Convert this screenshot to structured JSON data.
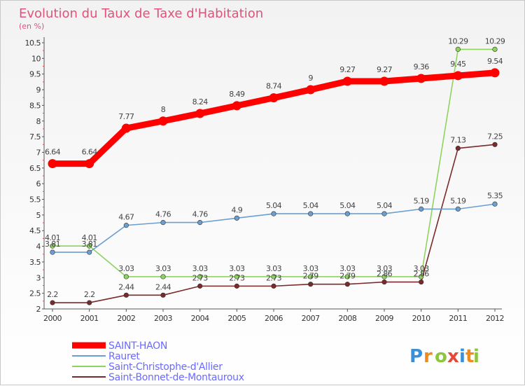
{
  "chart_data": {
    "type": "line",
    "title": "Evolution du Taux de Taxe d'Habitation",
    "subtitle": "(en %)",
    "xlabel": "",
    "ylabel": "",
    "x": [
      "2000",
      "2001",
      "2002",
      "2003",
      "2004",
      "2005",
      "2006",
      "2007",
      "2008",
      "2009",
      "2010",
      "2011",
      "2012"
    ],
    "ylim": [
      2,
      10.5
    ],
    "yticks": [
      "2",
      "2.5",
      "3",
      "3.5",
      "4",
      "4.5",
      "5",
      "5.5",
      "6",
      "6.5",
      "7",
      "7.5",
      "8",
      "8.5",
      "9",
      "9.5",
      "10",
      "10.5"
    ],
    "grid": false,
    "legend_position": "bottom-left",
    "series": [
      {
        "name": "SAINT-HAON",
        "color": "#ff0000",
        "values": [
          6.64,
          6.64,
          7.77,
          8,
          8.24,
          8.49,
          8.74,
          9,
          9.27,
          9.27,
          9.36,
          9.45,
          9.54
        ],
        "labels": [
          "6.64",
          "6.64",
          "7.77",
          "8",
          "8.24",
          "8.49",
          "8.74",
          "9",
          "9.27",
          "9.27",
          "9.36",
          "9.45",
          "9.54"
        ]
      },
      {
        "name": "Rauret",
        "color": "#6a9fcf",
        "values": [
          3.81,
          3.81,
          4.67,
          4.76,
          4.76,
          4.9,
          5.04,
          5.04,
          5.04,
          5.04,
          5.19,
          5.19,
          5.35
        ],
        "labels": [
          "3.81",
          "3.81",
          "4.67",
          "4.76",
          "4.76",
          "4.9",
          "5.04",
          "5.04",
          "5.04",
          "5.04",
          "5.19",
          "5.19",
          "5.35"
        ]
      },
      {
        "name": "Saint-Christophe-d'Allier",
        "color": "#8fd35f",
        "values": [
          4.01,
          4.01,
          3.03,
          3.03,
          3.03,
          3.03,
          3.03,
          3.03,
          3.03,
          3.03,
          3.03,
          10.29,
          10.29
        ],
        "labels": [
          "4.01",
          "4.01",
          "3.03",
          "3.03",
          "3.03",
          "3.03",
          "3.03",
          "3.03",
          "3.03",
          "3.03",
          "3.03",
          "10.29",
          "10.29"
        ]
      },
      {
        "name": "Saint-Bonnet-de-Montauroux",
        "color": "#7a2a2a",
        "values": [
          2.2,
          2.2,
          2.44,
          2.44,
          2.73,
          2.73,
          2.73,
          2.79,
          2.79,
          2.86,
          2.86,
          7.13,
          7.25
        ],
        "labels": [
          "2.2",
          "2.2",
          "2.44",
          "2.44",
          "2.73",
          "2.73",
          "2.73",
          "2.79",
          "2.79",
          "2.86",
          "2.86",
          "7.13",
          "7.25"
        ]
      }
    ]
  },
  "legend": {
    "items": [
      {
        "label": "SAINT-HAON",
        "color": "#ff0000",
        "text_color": "#6a6aff"
      },
      {
        "label": "Rauret",
        "color": "#6a9fcf",
        "text_color": "#6a6aff"
      },
      {
        "label": "Saint-Christophe-d'Allier",
        "color": "#8fd35f",
        "text_color": "#6a6aff"
      },
      {
        "label": "Saint-Bonnet-de-Montauroux",
        "color": "#7a2a2a",
        "text_color": "#6a6aff"
      }
    ]
  },
  "logo": {
    "letters": [
      "P",
      "r",
      "o",
      "x",
      "i",
      "t",
      "i"
    ],
    "colors": [
      "#3a8fd8",
      "#f08a1c",
      "#8cc63f",
      "#e8463a",
      "#3a8fd8",
      "#f08a1c",
      "#8cc63f"
    ]
  }
}
